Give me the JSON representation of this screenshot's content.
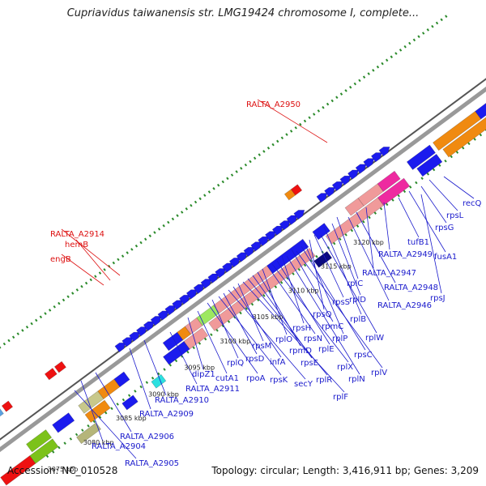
{
  "title": "Cupriavidus taiwanensis str. LMG19424 chromosome I, complete...",
  "footer": {
    "accession": "Accession: NC_010528",
    "summary": "Topology: circular; Length: 3,416,911 bp; Genes: 3,209"
  },
  "colors": {
    "label_blue": "#1a1acc",
    "label_red": "#dd1111",
    "tick_green": "#2a8a2a",
    "backbone": "#888888",
    "gene_blue": "#1b1bee",
    "gene_pink": "#f09a9a",
    "gene_orange": "#f08a10",
    "gene_red": "#ee1111"
  },
  "scale_labels": [
    "3075 kbp",
    "3080 kbp",
    "3085 kbp",
    "3090 kbp",
    "3095 kbp",
    "3100 kbp",
    "3105 kbp",
    "3110 kbp",
    "3115 kbp",
    "3120 kbp"
  ],
  "gene_labels": [
    {
      "text": "RALTA_A2950",
      "color": "red"
    },
    {
      "text": "RALTA_A2914",
      "color": "red"
    },
    {
      "text": "hemB",
      "color": "red"
    },
    {
      "text": "engB",
      "color": "red"
    },
    {
      "text": "recQ",
      "color": "blue"
    },
    {
      "text": "rpsL",
      "color": "blue"
    },
    {
      "text": "rpsG",
      "color": "blue"
    },
    {
      "text": "fusA1",
      "color": "blue"
    },
    {
      "text": "tufB1",
      "color": "blue"
    },
    {
      "text": "RALTA_A2949",
      "color": "blue"
    },
    {
      "text": "RALTA_A2947",
      "color": "blue"
    },
    {
      "text": "RALTA_A2948",
      "color": "blue"
    },
    {
      "text": "rpsJ",
      "color": "blue"
    },
    {
      "text": "RALTA_A2946",
      "color": "blue"
    },
    {
      "text": "rplC",
      "color": "blue"
    },
    {
      "text": "rplD",
      "color": "blue"
    },
    {
      "text": "rplB",
      "color": "blue"
    },
    {
      "text": "rplW",
      "color": "blue"
    },
    {
      "text": "rpsS",
      "color": "blue"
    },
    {
      "text": "rpsQ",
      "color": "blue"
    },
    {
      "text": "rplP",
      "color": "blue"
    },
    {
      "text": "rpsC",
      "color": "blue"
    },
    {
      "text": "rplV",
      "color": "blue"
    },
    {
      "text": "rpmC",
      "color": "blue"
    },
    {
      "text": "rplN",
      "color": "blue"
    },
    {
      "text": "rpsH",
      "color": "blue"
    },
    {
      "text": "rplE",
      "color": "blue"
    },
    {
      "text": "rplX",
      "color": "blue"
    },
    {
      "text": "rpsN",
      "color": "blue"
    },
    {
      "text": "rplO",
      "color": "blue"
    },
    {
      "text": "rpmD",
      "color": "blue"
    },
    {
      "text": "rpsE",
      "color": "blue"
    },
    {
      "text": "rplR",
      "color": "blue"
    },
    {
      "text": "rplF",
      "color": "blue"
    },
    {
      "text": "rpsM",
      "color": "blue"
    },
    {
      "text": "infA",
      "color": "blue"
    },
    {
      "text": "secY",
      "color": "blue"
    },
    {
      "text": "rpsD",
      "color": "blue"
    },
    {
      "text": "rpsK",
      "color": "blue"
    },
    {
      "text": "rplQ",
      "color": "blue"
    },
    {
      "text": "rpoA",
      "color": "blue"
    },
    {
      "text": "dipZ1",
      "color": "blue"
    },
    {
      "text": "cutA1",
      "color": "blue"
    },
    {
      "text": "RALTA_A2911",
      "color": "blue"
    },
    {
      "text": "RALTA_A2910",
      "color": "blue"
    },
    {
      "text": "RALTA_A2909",
      "color": "blue"
    },
    {
      "text": "RALTA_A2906",
      "color": "blue"
    },
    {
      "text": "RALTA_A2904",
      "color": "blue"
    },
    {
      "text": "RALTA_A2905",
      "color": "blue"
    }
  ]
}
